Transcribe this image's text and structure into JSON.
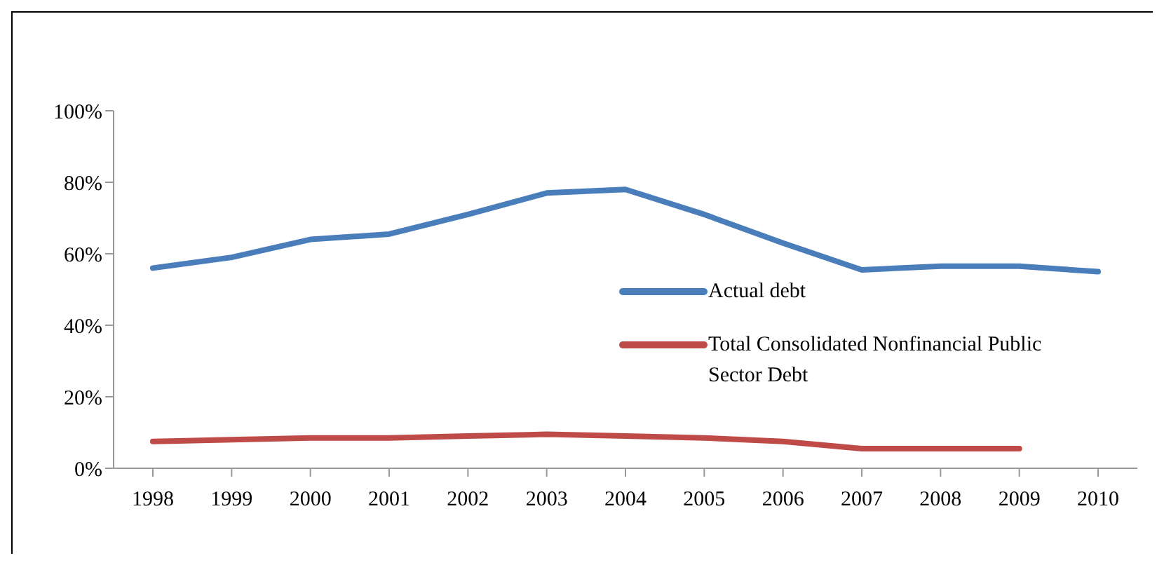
{
  "chart_data": {
    "type": "line",
    "categories": [
      "1998",
      "1999",
      "2000",
      "2001",
      "2002",
      "2003",
      "2004",
      "2005",
      "2006",
      "2007",
      "2008",
      "2009",
      "2010"
    ],
    "series": [
      {
        "name": "Actual debt",
        "color": "#4a7ebb",
        "values": [
          56,
          59,
          64,
          65.5,
          71,
          77,
          78,
          71,
          63,
          55.5,
          56.5,
          56.5,
          55
        ]
      },
      {
        "name": "Total Consolidated Nonfinancial Public Sector Debt",
        "color": "#be4b48",
        "values": [
          7.5,
          8,
          8.5,
          8.5,
          9,
          9.5,
          9,
          8.5,
          7.5,
          5.5,
          5.5,
          5.5,
          null
        ]
      }
    ],
    "ylim": [
      0,
      100
    ],
    "yticks": [
      {
        "value": 0,
        "label": "0%"
      },
      {
        "value": 20,
        "label": "20%"
      },
      {
        "value": 40,
        "label": "40%"
      },
      {
        "value": 60,
        "label": "60%"
      },
      {
        "value": 80,
        "label": "80%"
      },
      {
        "value": 100,
        "label": "100%"
      }
    ],
    "grid": false,
    "legend": "right",
    "marker": "none"
  }
}
